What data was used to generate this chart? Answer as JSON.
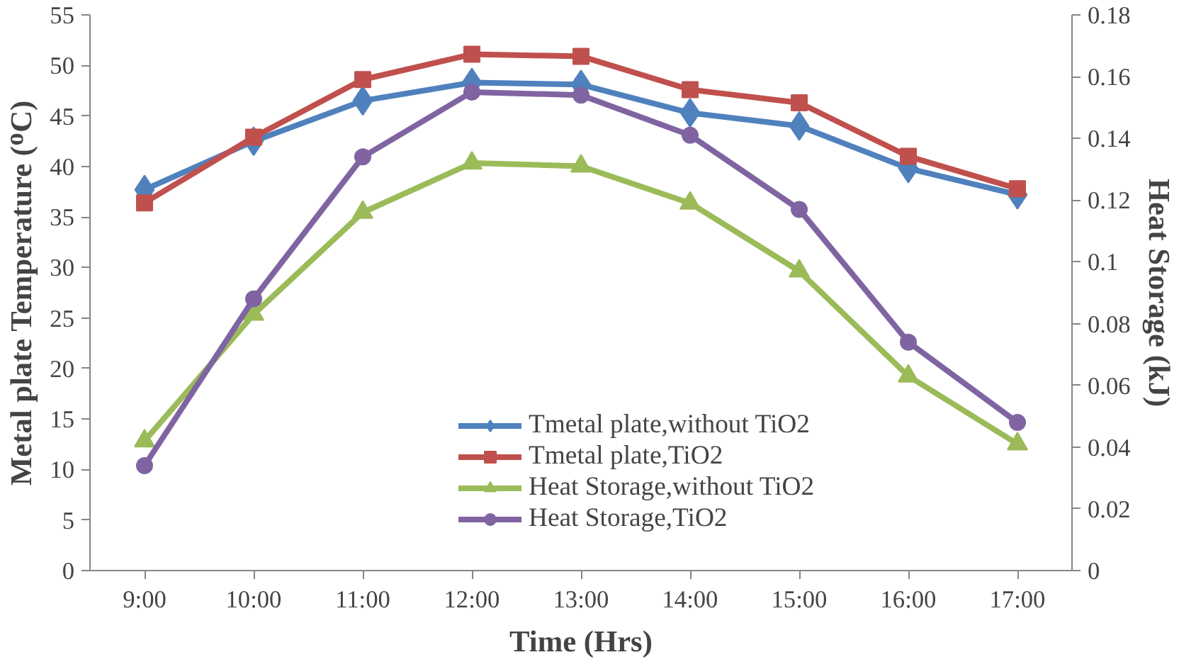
{
  "chart_data": {
    "type": "line",
    "xlabel": "Time (Hrs)",
    "ylabel": "Metal plate Temperature (ᴼC)",
    "y2label": "Heat Storage (kJ)",
    "categories": [
      "9:00",
      "10:00",
      "11:00",
      "12:00",
      "13:00",
      "14:00",
      "15:00",
      "16:00",
      "17:00"
    ],
    "series": [
      {
        "name": "Tmetal plate,without TiO2",
        "color": "#4f81bd",
        "marker": "diamond",
        "values": [
          37.7,
          42.5,
          46.5,
          48.3,
          48.1,
          45.3,
          44.0,
          39.8,
          37.2
        ]
      },
      {
        "name": "Tmetal plate,TiO2",
        "color": "#c0504d",
        "marker": "square",
        "values": [
          36.4,
          42.9,
          48.6,
          51.1,
          50.9,
          47.6,
          46.3,
          41.0,
          37.8
        ]
      },
      {
        "name": "Heat Storage,without TiO2",
        "color": "#9bbb59",
        "marker": "triangle",
        "axis": "y2",
        "values": [
          0.042,
          0.083,
          0.116,
          0.132,
          0.131,
          0.119,
          0.097,
          0.063,
          0.041
        ]
      },
      {
        "name": "Heat Storage,TiO2",
        "color": "#8064a2",
        "marker": "circle",
        "axis": "y2",
        "values": [
          0.034,
          0.088,
          0.134,
          0.155,
          0.154,
          0.141,
          0.117,
          0.074,
          0.048
        ]
      }
    ],
    "ylim": [
      0,
      55
    ],
    "yticks": [
      0,
      5,
      10,
      15,
      20,
      25,
      30,
      35,
      40,
      45,
      50,
      55
    ],
    "y2lim": [
      0,
      0.18
    ],
    "y2ticks": [
      0,
      0.02,
      0.04,
      0.06,
      0.08,
      0.1,
      0.12,
      0.14,
      0.16,
      0.18
    ],
    "grid": false,
    "legend": "bottom",
    "line_style": "solid"
  }
}
